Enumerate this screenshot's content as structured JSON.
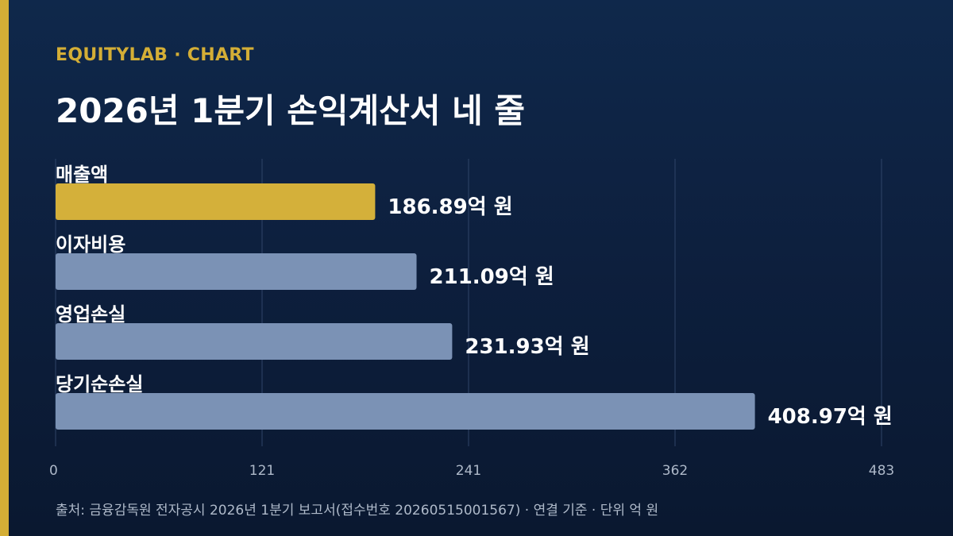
{
  "header": {
    "brand": "EQUITYLAB · CHART",
    "title": "2026년 1분기 손익계산서 네 줄"
  },
  "chart_data": {
    "type": "bar",
    "orientation": "horizontal",
    "title": "2026년 1분기 손익계산서 네 줄",
    "categories": [
      "매출액",
      "이자비용",
      "영업손실",
      "당기순손실"
    ],
    "values": [
      186.89,
      211.09,
      231.93,
      408.97
    ],
    "value_labels": [
      "186.89억 원",
      "211.09억 원",
      "231.93억 원",
      "408.97억 원"
    ],
    "bar_colors": [
      "#d4b03a",
      "#7b92b5",
      "#7b92b5",
      "#7b92b5"
    ],
    "xlim": [
      0,
      483
    ],
    "x_ticks": [
      "0",
      "121",
      "241",
      "362",
      "483"
    ],
    "grid": "vertical",
    "xlabel": "",
    "ylabel": ""
  },
  "footer": {
    "source": "출처: 금융감독원 전자공시 2026년 1분기 보고서(접수번호 20260515001567) · 연결 기준 · 단위 억 원"
  },
  "colors": {
    "accent": "#d4ae36",
    "background_top": "#0f284b",
    "background_bottom": "#0a1830",
    "bar_default": "#7b92b5",
    "gridline": "#2f4468",
    "tick_text": "#aeb9c9"
  }
}
